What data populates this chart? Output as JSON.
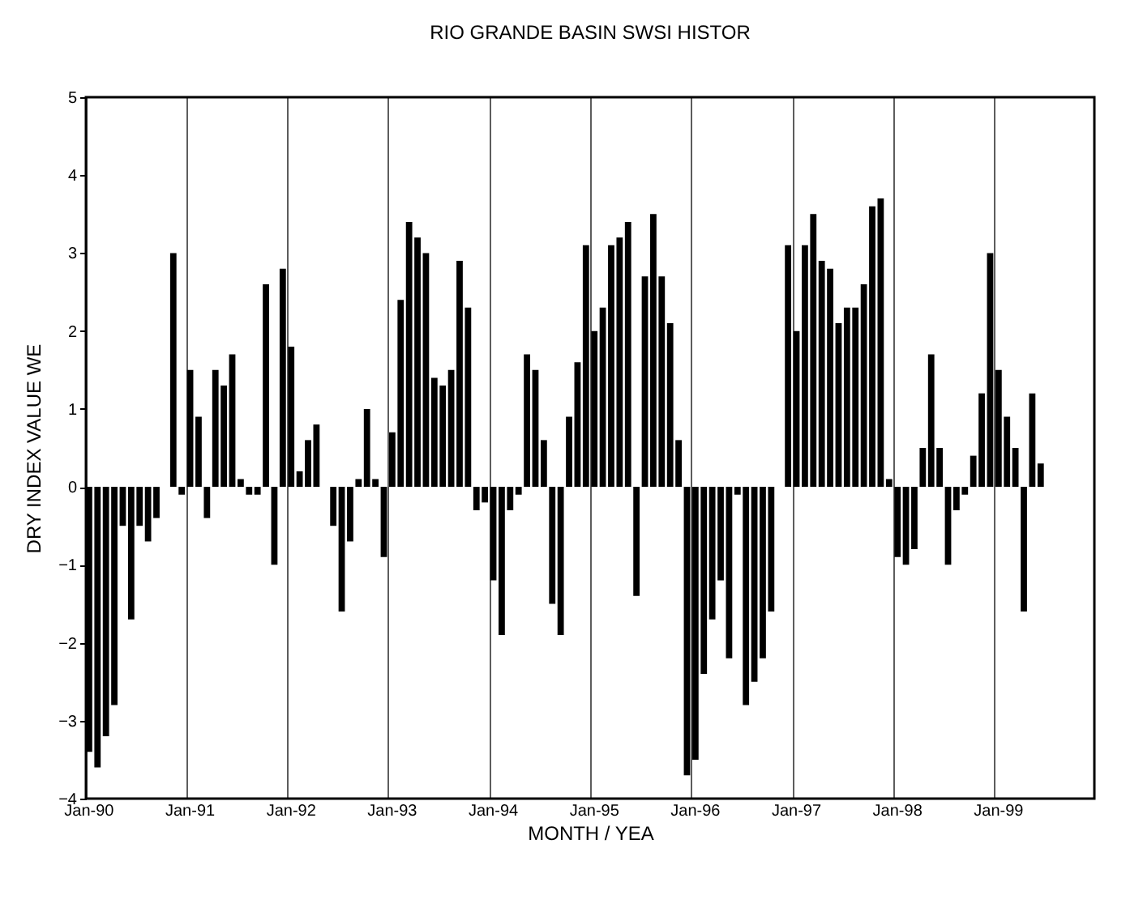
{
  "chart_data": {
    "type": "bar",
    "title": "RIO GRANDE BASIN SWSI HISTOR",
    "xlabel": "MONTH / YEA",
    "ylabel": "DRY     INDEX VALUE     WE",
    "categories": [
      "Jan-90",
      null,
      null,
      null,
      null,
      null,
      null,
      null,
      null,
      null,
      null,
      null,
      "Jan-91",
      null,
      null,
      null,
      null,
      null,
      null,
      null,
      null,
      null,
      null,
      null,
      "Jan-92",
      null,
      null,
      null,
      null,
      null,
      null,
      null,
      null,
      null,
      null,
      null,
      "Jan-93",
      null,
      null,
      null,
      null,
      null,
      null,
      null,
      null,
      null,
      null,
      null,
      "Jan-94",
      null,
      null,
      null,
      null,
      null,
      null,
      null,
      null,
      null,
      null,
      null,
      "Jan-95",
      null,
      null,
      null,
      null,
      null,
      null,
      null,
      null,
      null,
      null,
      null,
      "Jan-96",
      null,
      null,
      null,
      null,
      null,
      null,
      null,
      null,
      null,
      null,
      null,
      "Jan-97",
      null,
      null,
      null,
      null,
      null,
      null,
      null,
      null,
      null,
      null,
      null,
      "Jan-98",
      null,
      null,
      null,
      null,
      null,
      null,
      null,
      null,
      null,
      null,
      null,
      "Jan-99",
      null,
      null,
      null,
      null,
      null,
      null,
      null,
      null,
      null,
      null,
      null
    ],
    "values": [
      -3.4,
      -3.6,
      -3.2,
      -2.8,
      -0.5,
      -1.7,
      -0.5,
      -0.7,
      -0.4,
      0,
      3.0,
      -0.1,
      1.5,
      0.9,
      -0.4,
      1.5,
      1.3,
      1.7,
      0.1,
      -0.1,
      -0.1,
      2.6,
      -1.0,
      2.8,
      1.8,
      0.2,
      0.6,
      0.8,
      0,
      -0.5,
      -1.6,
      -0.7,
      0.1,
      1.0,
      0.1,
      -0.9,
      0.7,
      2.4,
      3.4,
      3.2,
      3.0,
      1.4,
      1.3,
      1.5,
      2.9,
      2.3,
      -0.3,
      -0.2,
      -1.2,
      -1.9,
      -0.3,
      -0.1,
      1.7,
      1.5,
      0.6,
      -1.5,
      -1.9,
      0.9,
      1.6,
      3.1,
      2.0,
      2.3,
      3.1,
      3.2,
      3.4,
      -1.4,
      2.7,
      3.5,
      2.7,
      2.1,
      0.6,
      -3.7,
      -3.5,
      -2.4,
      -1.7,
      -1.2,
      -2.2,
      -0.1,
      -2.8,
      -2.5,
      -2.2,
      -1.6,
      0,
      3.1,
      2.0,
      3.1,
      3.5,
      2.9,
      2.8,
      2.1,
      2.3,
      2.3,
      2.6,
      3.6,
      3.7,
      0.1,
      -0.9,
      -1.0,
      -0.8,
      0.5,
      1.7,
      0.5,
      -1.0,
      -0.3,
      -0.1,
      0.4,
      1.2,
      3.0,
      1.5,
      0.9,
      0.5,
      -1.6,
      1.2,
      0.3,
      null,
      null,
      null,
      null,
      null,
      null
    ],
    "color": "#000000",
    "ylim": [
      -4,
      5
    ],
    "yticks": [
      -4,
      -3,
      -2,
      -1,
      0,
      1,
      2,
      3,
      4,
      5
    ],
    "grid": "x"
  }
}
